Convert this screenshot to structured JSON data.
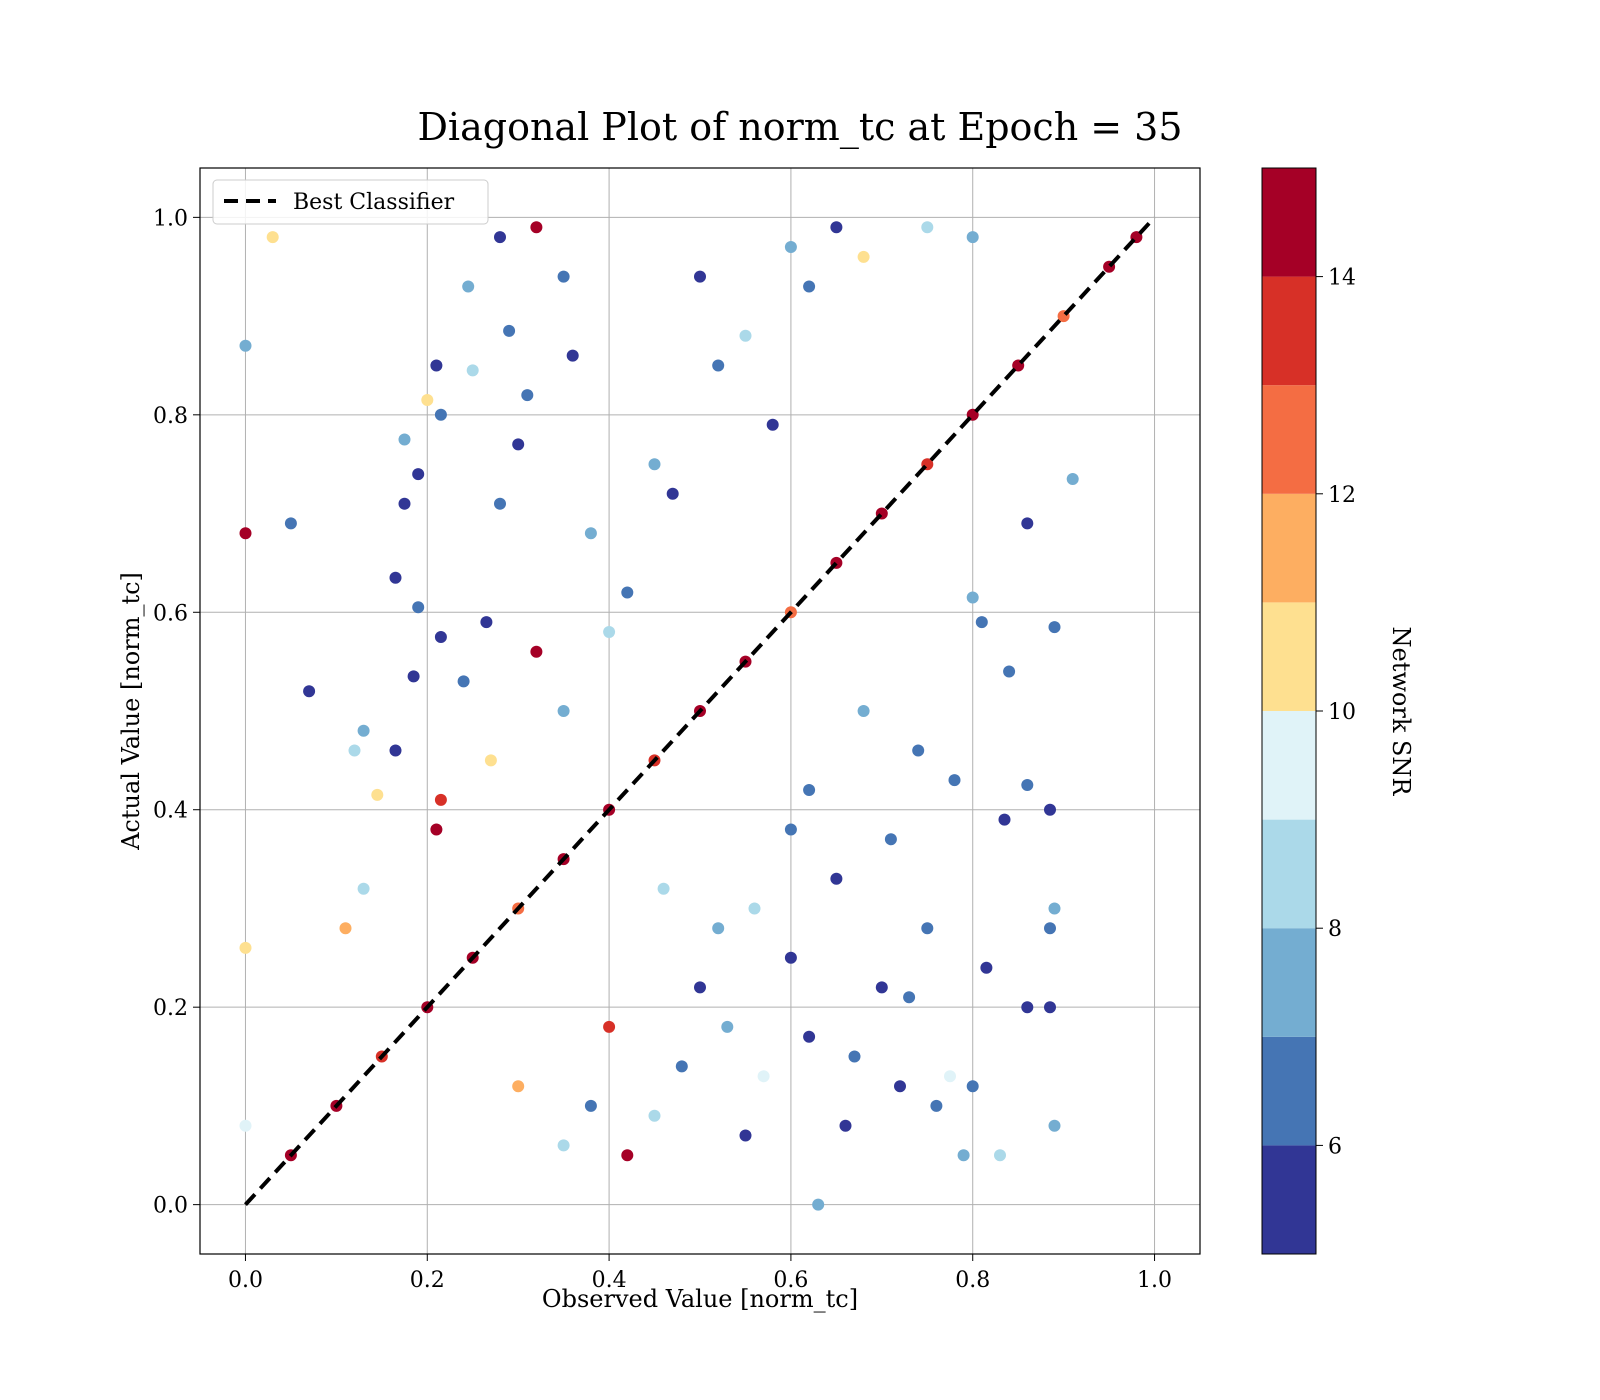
{
  "chart_data": {
    "type": "scatter",
    "title": "Diagonal Plot of norm_tc at Epoch = 35",
    "xlabel": "Observed Value [norm_tc]",
    "ylabel": "Actual Value [norm_tc]",
    "xlim": [
      -0.05,
      1.05
    ],
    "ylim": [
      -0.05,
      1.05
    ],
    "x_ticks": [
      "0.0",
      "0.2",
      "0.4",
      "0.6",
      "0.8",
      "1.0"
    ],
    "y_ticks": [
      "0.0",
      "0.2",
      "0.4",
      "0.6",
      "0.8",
      "1.0"
    ],
    "grid": true,
    "legend": {
      "position": "top-left",
      "entries": [
        "Best Classifier"
      ]
    },
    "reference_line": {
      "name": "Best Classifier",
      "x": [
        0.0,
        1.0
      ],
      "y": [
        0.0,
        1.0
      ],
      "style": "dashed",
      "color": "#000000"
    },
    "colorbar": {
      "label": "Network SNR",
      "range": [
        5.0,
        15.0
      ],
      "ticks": [
        "6",
        "8",
        "10",
        "12",
        "14"
      ],
      "levels": [
        5,
        6,
        7,
        8,
        9,
        10,
        11,
        12,
        13,
        14,
        15
      ],
      "colors": [
        "#313695",
        "#4575b4",
        "#74add1",
        "#abd9e9",
        "#e0f3f8",
        "#fee090",
        "#fdae61",
        "#f46d43",
        "#d73027",
        "#a50026"
      ]
    },
    "series": [
      {
        "points": [
          [
            0.0,
            0.68,
            14.6
          ],
          [
            0.0,
            0.87,
            7.5
          ],
          [
            0.03,
            0.98,
            10.5
          ],
          [
            0.0,
            0.26,
            10.5
          ],
          [
            0.0,
            0.08,
            9.5
          ],
          [
            0.05,
            0.69,
            6.5
          ],
          [
            0.07,
            0.52,
            5.5
          ],
          [
            0.12,
            0.46,
            8.5
          ],
          [
            0.13,
            0.48,
            7.5
          ],
          [
            0.13,
            0.32,
            8.5
          ],
          [
            0.11,
            0.28,
            11.5
          ],
          [
            0.145,
            0.415,
            10.5
          ],
          [
            0.165,
            0.46,
            5.5
          ],
          [
            0.165,
            0.635,
            5.5
          ],
          [
            0.175,
            0.775,
            7.5
          ],
          [
            0.175,
            0.71,
            5.5
          ],
          [
            0.19,
            0.605,
            6.5
          ],
          [
            0.185,
            0.535,
            5.5
          ],
          [
            0.19,
            0.74,
            5.5
          ],
          [
            0.2,
            0.815,
            10.5
          ],
          [
            0.21,
            0.85,
            5.5
          ],
          [
            0.215,
            0.575,
            5.5
          ],
          [
            0.215,
            0.8,
            6.5
          ],
          [
            0.21,
            0.38,
            14.6
          ],
          [
            0.215,
            0.41,
            13.5
          ],
          [
            0.245,
            0.93,
            7.5
          ],
          [
            0.25,
            0.845,
            8.5
          ],
          [
            0.265,
            0.59,
            5.5
          ],
          [
            0.28,
            0.71,
            6.5
          ],
          [
            0.28,
            0.98,
            5.5
          ],
          [
            0.29,
            0.885,
            6.5
          ],
          [
            0.3,
            0.77,
            5.5
          ],
          [
            0.31,
            0.82,
            6.5
          ],
          [
            0.32,
            0.99,
            14.6
          ],
          [
            0.32,
            0.56,
            14.6
          ],
          [
            0.35,
            0.94,
            6.5
          ],
          [
            0.36,
            0.86,
            5.5
          ],
          [
            0.38,
            0.68,
            7.5
          ],
          [
            0.27,
            0.45,
            10.5
          ],
          [
            0.24,
            0.53,
            6.5
          ],
          [
            0.5,
            0.94,
            5.5
          ],
          [
            0.6,
            0.97,
            7.5
          ],
          [
            0.65,
            0.99,
            5.5
          ],
          [
            0.52,
            0.85,
            6.5
          ],
          [
            0.45,
            0.75,
            7.5
          ],
          [
            0.42,
            0.62,
            6.5
          ],
          [
            0.47,
            0.72,
            5.5
          ],
          [
            0.55,
            0.88,
            8.5
          ],
          [
            0.62,
            0.93,
            6.5
          ],
          [
            0.68,
            0.96,
            10.5
          ],
          [
            0.75,
            0.99,
            8.5
          ],
          [
            0.8,
            0.98,
            7.5
          ],
          [
            0.58,
            0.79,
            5.5
          ],
          [
            0.4,
            0.58,
            8.5
          ],
          [
            0.35,
            0.5,
            7.5
          ],
          [
            0.72,
            0.12,
            5.5
          ],
          [
            0.7,
            0.22,
            5.5
          ],
          [
            0.79,
            0.05,
            7.5
          ],
          [
            0.83,
            0.05,
            8.5
          ],
          [
            0.89,
            0.08,
            7.5
          ],
          [
            0.89,
            0.3,
            7.5
          ],
          [
            0.89,
            0.585,
            6.5
          ],
          [
            0.91,
            0.735,
            7.5
          ],
          [
            0.86,
            0.69,
            5.5
          ],
          [
            0.885,
            0.4,
            5.5
          ],
          [
            0.86,
            0.425,
            6.5
          ],
          [
            0.835,
            0.39,
            5.5
          ],
          [
            0.84,
            0.54,
            6.5
          ],
          [
            0.81,
            0.59,
            6.5
          ],
          [
            0.8,
            0.615,
            7.5
          ],
          [
            0.815,
            0.24,
            5.5
          ],
          [
            0.8,
            0.12,
            6.5
          ],
          [
            0.86,
            0.2,
            5.5
          ],
          [
            0.885,
            0.2,
            5.5
          ],
          [
            0.885,
            0.28,
            6.5
          ],
          [
            0.775,
            0.13,
            9.5
          ],
          [
            0.76,
            0.1,
            6.5
          ],
          [
            0.73,
            0.21,
            6.5
          ],
          [
            0.75,
            0.28,
            6.5
          ],
          [
            0.78,
            0.43,
            6.5
          ],
          [
            0.74,
            0.46,
            6.5
          ],
          [
            0.71,
            0.37,
            6.5
          ],
          [
            0.65,
            0.33,
            5.5
          ],
          [
            0.6,
            0.38,
            6.5
          ],
          [
            0.62,
            0.17,
            5.5
          ],
          [
            0.66,
            0.08,
            5.5
          ],
          [
            0.67,
            0.15,
            6.5
          ],
          [
            0.6,
            0.25,
            5.5
          ],
          [
            0.56,
            0.3,
            8.5
          ],
          [
            0.5,
            0.22,
            5.5
          ],
          [
            0.48,
            0.14,
            6.5
          ],
          [
            0.45,
            0.09,
            8.5
          ],
          [
            0.42,
            0.05,
            14.6
          ],
          [
            0.4,
            0.18,
            13.5
          ],
          [
            0.38,
            0.1,
            6.5
          ],
          [
            0.35,
            0.06,
            8.5
          ],
          [
            0.3,
            0.12,
            11.5
          ],
          [
            0.55,
            0.07,
            5.5
          ],
          [
            0.63,
            0.0,
            7.5
          ],
          [
            0.57,
            0.13,
            9.5
          ],
          [
            0.52,
            0.28,
            7.5
          ],
          [
            0.46,
            0.32,
            8.5
          ],
          [
            0.68,
            0.5,
            7.5
          ],
          [
            0.62,
            0.42,
            6.5
          ],
          [
            0.53,
            0.18,
            7.5
          ],
          [
            0.05,
            0.05,
            14.6
          ],
          [
            0.1,
            0.1,
            14.6
          ],
          [
            0.15,
            0.15,
            13.5
          ],
          [
            0.2,
            0.2,
            14.6
          ],
          [
            0.25,
            0.25,
            14.6
          ],
          [
            0.3,
            0.3,
            12.5
          ],
          [
            0.35,
            0.35,
            14.6
          ],
          [
            0.4,
            0.4,
            14.6
          ],
          [
            0.45,
            0.45,
            13.5
          ],
          [
            0.5,
            0.5,
            14.6
          ],
          [
            0.55,
            0.55,
            14.6
          ],
          [
            0.6,
            0.6,
            12.5
          ],
          [
            0.65,
            0.65,
            14.6
          ],
          [
            0.7,
            0.7,
            14.6
          ],
          [
            0.75,
            0.75,
            13.5
          ],
          [
            0.8,
            0.8,
            14.6
          ],
          [
            0.85,
            0.85,
            14.6
          ],
          [
            0.9,
            0.9,
            12.5
          ],
          [
            0.95,
            0.95,
            14.6
          ],
          [
            0.98,
            0.98,
            14.6
          ]
        ]
      }
    ]
  }
}
